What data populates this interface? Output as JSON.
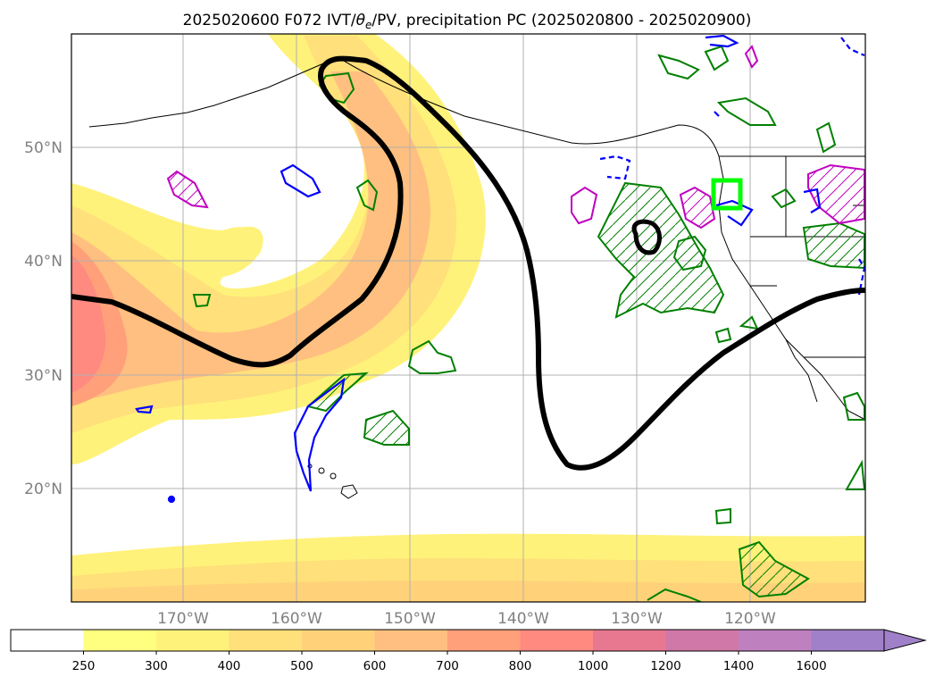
{
  "title": "2025020600 F072 IVT/θe/PV, precipitation PC (2025020800 - 2025020900)",
  "title_parts": {
    "pre": "2025020600 F072 IVT/",
    "theta": "θ",
    "sub": "e",
    "post": "/PV, precipitation PC (2025020800 - 2025020900)"
  },
  "map": {
    "lat_labels": [
      "50°N",
      "40°N",
      "30°N",
      "20°N"
    ],
    "lon_labels": [
      "170°W",
      "160°W",
      "150°W",
      "140°W",
      "130°W",
      "120°W"
    ],
    "grid": true,
    "layers": {
      "ivt_shading": "IVT filled contours (yellow-orange-red)",
      "theta_e_contour": "black thick contour",
      "pv_contours": "blue contours",
      "precip_pc_contours": "green / magenta hatched contours",
      "target_box": "lime green box"
    }
  },
  "colorbar": {
    "levels": [
      "250",
      "300",
      "400",
      "500",
      "600",
      "700",
      "800",
      "1000",
      "1200",
      "1400",
      "1600"
    ],
    "colors": [
      "#ffffff",
      "#ffff80",
      "#fff27a",
      "#ffe07a",
      "#ffd27a",
      "#ffbf80",
      "#ffa07a",
      "#ff8a80",
      "#e87890",
      "#d078a8",
      "#bf80c0",
      "#a080c8"
    ],
    "extend": "max"
  },
  "colors": {
    "ivt_light": "#fff27a",
    "ivt_mid": "#ffd27a",
    "ivt_dark": "#ffa07a",
    "ivt_red": "#ff8a80",
    "theta_e": "#000000",
    "pv": "#0000ff",
    "precip_green": "#008000",
    "precip_magenta": "#c000c0",
    "box": "#00ff00"
  }
}
